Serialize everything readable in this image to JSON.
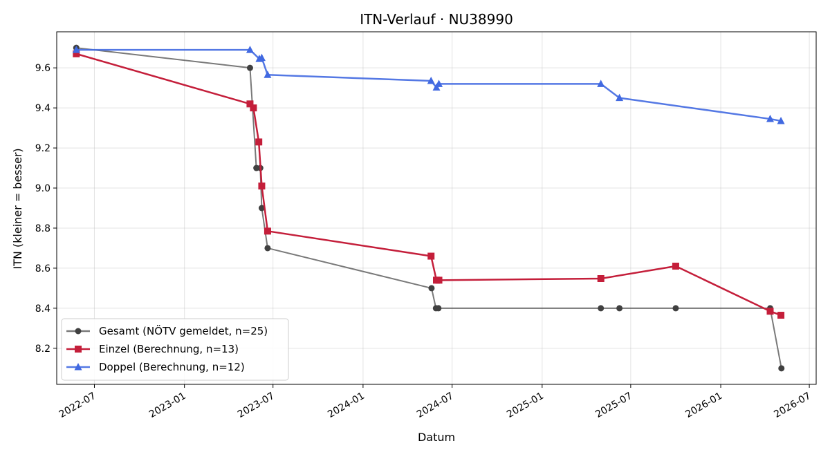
{
  "chart_data": {
    "type": "line",
    "title": "ITN-Verlauf · NU38990",
    "xlabel": "Datum",
    "ylabel": "ITN  (kleiner = besser)",
    "x_axis": "date",
    "xlim": [
      "2022-04-15",
      "2026-07-15"
    ],
    "ylim": [
      8.02,
      9.78
    ],
    "x_ticks": [
      "2022-07-01",
      "2023-01-01",
      "2023-07-01",
      "2024-01-01",
      "2024-07-01",
      "2025-01-01",
      "2025-07-01",
      "2026-01-01",
      "2026-07-01"
    ],
    "x_tick_labels": [
      "2022-07",
      "2023-01",
      "2023-07",
      "2024-01",
      "2024-07",
      "2025-01",
      "2025-07",
      "2026-01",
      "2026-07"
    ],
    "y_ticks": [
      8.2,
      8.4,
      8.6,
      8.8,
      9.0,
      9.2,
      9.4,
      9.6
    ],
    "y_tick_labels": [
      "8.2",
      "8.4",
      "8.6",
      "8.8",
      "9.0",
      "9.2",
      "9.4",
      "9.6"
    ],
    "grid": true,
    "legend_position": "lower-left",
    "series": [
      {
        "name": "Gesamt (NÖTV gemeldet, n=25)",
        "color": "#404040",
        "line_opacity": 0.7,
        "marker": "circle",
        "points": [
          {
            "x": "2022-05-25",
            "y": 9.7
          },
          {
            "x": "2023-05-15",
            "y": 9.6
          },
          {
            "x": "2023-05-28",
            "y": 9.1
          },
          {
            "x": "2023-06-05",
            "y": 9.1
          },
          {
            "x": "2023-06-08",
            "y": 8.9
          },
          {
            "x": "2023-06-20",
            "y": 8.7
          },
          {
            "x": "2024-05-20",
            "y": 8.5
          },
          {
            "x": "2024-05-29",
            "y": 8.4
          },
          {
            "x": "2024-06-03",
            "y": 8.4
          },
          {
            "x": "2025-05-01",
            "y": 8.4
          },
          {
            "x": "2025-06-08",
            "y": 8.4
          },
          {
            "x": "2025-10-01",
            "y": 8.4
          },
          {
            "x": "2026-04-12",
            "y": 8.4
          },
          {
            "x": "2026-05-05",
            "y": 8.1
          }
        ]
      },
      {
        "name": "Einzel (Berechnung, n=13)",
        "color": "#c41e3a",
        "line_opacity": 1,
        "marker": "square",
        "points": [
          {
            "x": "2022-05-25",
            "y": 9.67
          },
          {
            "x": "2023-05-15",
            "y": 9.42
          },
          {
            "x": "2023-05-22",
            "y": 9.4
          },
          {
            "x": "2023-06-02",
            "y": 9.23
          },
          {
            "x": "2023-06-08",
            "y": 9.01
          },
          {
            "x": "2023-06-20",
            "y": 8.785
          },
          {
            "x": "2024-05-19",
            "y": 8.66
          },
          {
            "x": "2024-05-30",
            "y": 8.54
          },
          {
            "x": "2024-06-04",
            "y": 8.54
          },
          {
            "x": "2025-05-01",
            "y": 8.548
          },
          {
            "x": "2025-10-01",
            "y": 8.61
          },
          {
            "x": "2026-04-12",
            "y": 8.385
          },
          {
            "x": "2026-05-04",
            "y": 8.365
          }
        ]
      },
      {
        "name": "Doppel (Berechnung, n=12)",
        "color": "#4169e1",
        "line_opacity": 0.9,
        "marker": "triangle",
        "points": [
          {
            "x": "2022-05-25",
            "y": 9.69
          },
          {
            "x": "2023-05-15",
            "y": 9.69
          },
          {
            "x": "2023-06-03",
            "y": 9.645
          },
          {
            "x": "2023-06-08",
            "y": 9.65
          },
          {
            "x": "2023-06-20",
            "y": 9.565
          },
          {
            "x": "2024-05-19",
            "y": 9.535
          },
          {
            "x": "2024-05-30",
            "y": 9.502
          },
          {
            "x": "2024-06-04",
            "y": 9.52
          },
          {
            "x": "2025-05-01",
            "y": 9.52
          },
          {
            "x": "2025-06-08",
            "y": 9.45
          },
          {
            "x": "2026-04-12",
            "y": 9.345
          },
          {
            "x": "2026-05-04",
            "y": 9.335
          }
        ]
      }
    ]
  }
}
